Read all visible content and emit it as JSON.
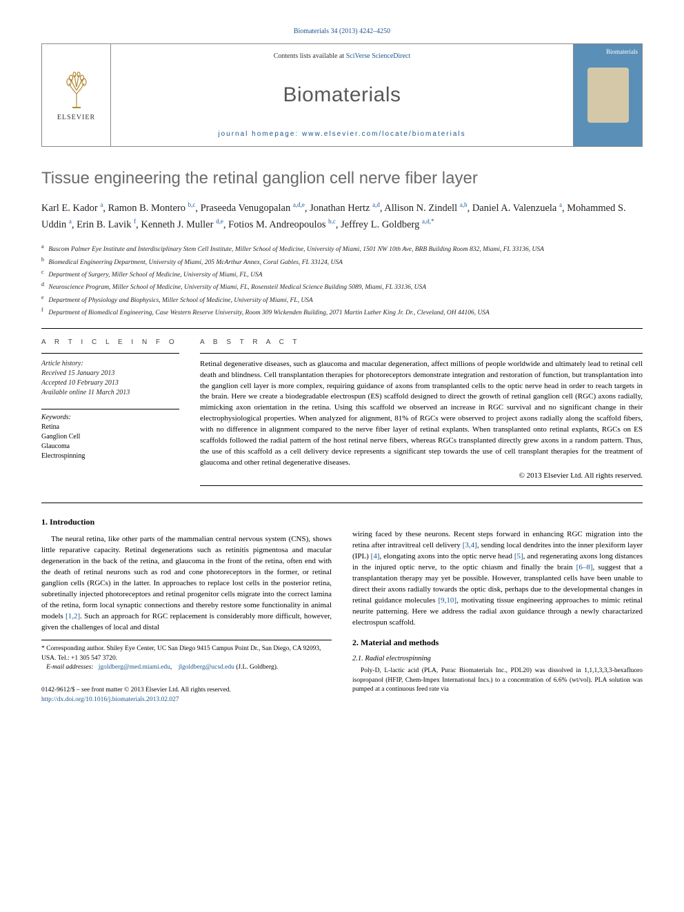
{
  "citation": "Biomaterials 34 (2013) 4242–4250",
  "header": {
    "publisher_name": "ELSEVIER",
    "contents_prefix": "Contents lists available at ",
    "contents_link": "SciVerse ScienceDirect",
    "journal_name": "Biomaterials",
    "homepage_prefix": "journal homepage: ",
    "homepage_url": "www.elsevier.com/locate/biomaterials",
    "cover_label": "Biomaterials"
  },
  "title": "Tissue engineering the retinal ganglion cell nerve fiber layer",
  "authors_html": "Karl E. Kador <sup>a</sup>, Ramon B. Montero <sup>b,c</sup>, Praseeda Venugopalan <sup>a,d,e</sup>, Jonathan Hertz <sup>a,d</sup>, Allison N. Zindell <sup>a,b</sup>, Daniel A. Valenzuela <sup>a</sup>, Mohammed S. Uddin <sup>a</sup>, Erin B. Lavik <sup>f</sup>, Kenneth J. Muller <sup>d,e</sup>, Fotios M. Andreopoulos <sup>b,c</sup>, Jeffrey L. Goldberg <sup>a,d,*</sup>",
  "affiliations": [
    {
      "k": "a",
      "t": "Bascom Palmer Eye Institute and Interdisciplinary Stem Cell Institute, Miller School of Medicine, University of Miami, 1501 NW 10th Ave, BRB Building Room 832, Miami, FL 33136, USA"
    },
    {
      "k": "b",
      "t": "Biomedical Engineering Department, University of Miami, 205 McArthur Annex, Coral Gables, FL 33124, USA"
    },
    {
      "k": "c",
      "t": "Department of Surgery, Miller School of Medicine, University of Miami, FL, USA"
    },
    {
      "k": "d",
      "t": "Neuroscience Program, Miller School of Medicine, University of Miami, FL, Rosensteil Medical Science Building 5089, Miami, FL 33136, USA"
    },
    {
      "k": "e",
      "t": "Department of Physiology and Biophysics, Miller School of Medicine, University of Miami, FL, USA"
    },
    {
      "k": "f",
      "t": "Department of Biomedical Engineering, Case Western Reserve University, Room 309 Wickenden Building, 2071 Martin Luther King Jr. Dr., Cleveland, OH 44106, USA"
    }
  ],
  "info": {
    "section_label": "A R T I C L E   I N F O",
    "history_label": "Article history:",
    "received": "Received 15 January 2013",
    "accepted": "Accepted 10 February 2013",
    "online": "Available online 11 March 2013",
    "keywords_label": "Keywords:",
    "keywords": [
      "Retina",
      "Ganglion Cell",
      "Glaucoma",
      "Electrospinning"
    ]
  },
  "abstract": {
    "label": "A B S T R A C T",
    "text": "Retinal degenerative diseases, such as glaucoma and macular degeneration, affect millions of people worldwide and ultimately lead to retinal cell death and blindness. Cell transplantation therapies for photoreceptors demonstrate integration and restoration of function, but transplantation into the ganglion cell layer is more complex, requiring guidance of axons from transplanted cells to the optic nerve head in order to reach targets in the brain. Here we create a biodegradable electrospun (ES) scaffold designed to direct the growth of retinal ganglion cell (RGC) axons radially, mimicking axon orientation in the retina. Using this scaffold we observed an increase in RGC survival and no significant change in their electrophysiological properties. When analyzed for alignment, 81% of RGCs were observed to project axons radially along the scaffold fibers, with no difference in alignment compared to the nerve fiber layer of retinal explants. When transplanted onto retinal explants, RGCs on ES scaffolds followed the radial pattern of the host retinal nerve fibers, whereas RGCs transplanted directly grew axons in a random pattern. Thus, the use of this scaffold as a cell delivery device represents a significant step towards the use of cell transplant therapies for the treatment of glaucoma and other retinal degenerative diseases.",
    "copyright": "© 2013 Elsevier Ltd. All rights reserved."
  },
  "intro": {
    "heading": "1. Introduction",
    "p1": "The neural retina, like other parts of the mammalian central nervous system (CNS), shows little reparative capacity. Retinal degenerations such as retinitis pigmentosa and macular degeneration in the back of the retina, and glaucoma in the front of the retina, often end with the death of retinal neurons such as rod and cone photoreceptors in the former, or retinal ganglion cells (RGCs) in the latter. In approaches to replace lost cells in the posterior retina, subretinally injected photoreceptors and retinal progenitor cells migrate into the correct lamina of the retina, form local synaptic connections and thereby restore some functionality in animal models [1,2]. Such an approach for RGC replacement is considerably more difficult, however, given the challenges of local and distal",
    "p2": "wiring faced by these neurons. Recent steps forward in enhancing RGC migration into the retina after intravitreal cell delivery [3,4], sending local dendrites into the inner plexiform layer (IPL) [4], elongating axons into the optic nerve head [5], and regenerating axons long distances in the injured optic nerve, to the optic chiasm and finally the brain [6–8], suggest that a transplantation therapy may yet be possible. However, transplanted cells have been unable to direct their axons radially towards the optic disk, perhaps due to the developmental changes in retinal guidance molecules [9,10], motivating tissue engineering approaches to mimic retinal neurite patterning. Here we address the radial axon guidance through a newly charactarized electrospun scaffold."
  },
  "methods": {
    "heading": "2. Material and methods",
    "sub": "2.1. Radial electrospinning",
    "text": "Poly-D, L-lactic acid (PLA, Purac Biomaterials Inc., PDL20) was dissolved in 1,1,1,3,3,3-hexafluoro isopropanol (HFIP, Chem-Impex International Incs.) to a concentration of 6.6% (wt/vol). PLA solution was pumped at a continuous feed rate via"
  },
  "corresp": {
    "star": "*",
    "label": "Corresponding author. Shiley Eye Center, UC San Diego 9415 Campus Point Dr., San Diego, CA 92093, USA. Tel.: +1 305 547 3720.",
    "email_label": "E-mail addresses:",
    "email1": "jgoldberg@med.miami.edu",
    "email2": "jlgoldberg@ucsd.edu",
    "email_suffix": "(J.L. Goldberg)."
  },
  "front": {
    "issn_line": "0142-9612/$ – see front matter © 2013 Elsevier Ltd. All rights reserved.",
    "doi": "http://dx.doi.org/10.1016/j.biomaterials.2013.02.027"
  },
  "colors": {
    "link": "#1a5490",
    "heading_gray": "#6a6a6a",
    "cover_bg": "#5a8fb8"
  }
}
